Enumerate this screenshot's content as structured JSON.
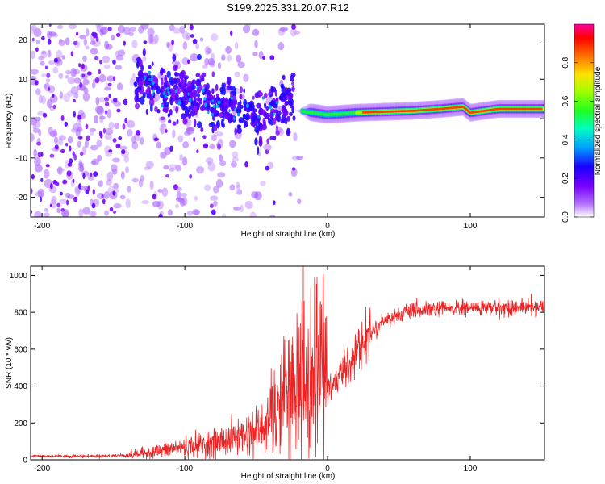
{
  "title": "S199.2025.331.20.07.R12",
  "chart_data": [
    {
      "type": "heatmap",
      "title": "S199.2025.331.20.07.R12",
      "xlabel": "Height of straight line (km)",
      "ylabel": "Frequency (Hz)",
      "xlim": [
        -208,
        152
      ],
      "ylim": [
        -25,
        24
      ],
      "xticks": [
        -200,
        -100,
        0,
        100
      ],
      "yticks": [
        -20,
        -10,
        0,
        10,
        20
      ],
      "colorbar": {
        "label": "Normalized spectral amplitude",
        "range": [
          0.0,
          1.0
        ],
        "ticks": [
          0.0,
          0.2,
          0.4,
          0.6,
          0.8
        ],
        "colormap": [
          "#ffffff",
          "#8000ff",
          "#0000ff",
          "#00c8ff",
          "#00ff80",
          "#80ff00",
          "#ffff00",
          "#ff8000",
          "#ff0000",
          "#ff00b4"
        ]
      },
      "carrier_ridge": {
        "description_points": [
          {
            "x": -20,
            "f": 2.0
          },
          {
            "x": 0,
            "f": 1.0
          },
          {
            "x": 20,
            "f": 1.5
          },
          {
            "x": 60,
            "f": 2.0
          },
          {
            "x": 80,
            "f": 2.5
          },
          {
            "x": 95,
            "f": 3.0
          },
          {
            "x": 100,
            "f": 1.5
          },
          {
            "x": 120,
            "f": 2.5
          },
          {
            "x": 150,
            "f": 2.5
          }
        ]
      },
      "scatter_trend": [
        {
          "x": -130,
          "f": 9
        },
        {
          "x": -100,
          "f": 6
        },
        {
          "x": -70,
          "f": 3
        },
        {
          "x": -45,
          "f": 0
        },
        {
          "x": -25,
          "f": 4
        }
      ]
    },
    {
      "type": "line",
      "xlabel": "Height of straight line (km)",
      "ylabel": "SNR (10 * v/v)",
      "xlim": [
        -208,
        152
      ],
      "ylim": [
        0,
        1050
      ],
      "xticks": [
        -200,
        -100,
        0,
        100
      ],
      "yticks": [
        0,
        200,
        400,
        600,
        800,
        1000
      ],
      "series": [
        {
          "name": "SNR",
          "color": "#ee2222",
          "trend_points": [
            {
              "x": -208,
              "y": 20
            },
            {
              "x": -160,
              "y": 20
            },
            {
              "x": -140,
              "y": 25
            },
            {
              "x": -120,
              "y": 45
            },
            {
              "x": -100,
              "y": 70
            },
            {
              "x": -80,
              "y": 90
            },
            {
              "x": -60,
              "y": 130
            },
            {
              "x": -45,
              "y": 170
            },
            {
              "x": -30,
              "y": 230
            },
            {
              "x": -20,
              "y": 280
            },
            {
              "x": -10,
              "y": 330
            },
            {
              "x": 0,
              "y": 380
            },
            {
              "x": 10,
              "y": 470
            },
            {
              "x": 20,
              "y": 580
            },
            {
              "x": 30,
              "y": 690
            },
            {
              "x": 40,
              "y": 760
            },
            {
              "x": 55,
              "y": 800
            },
            {
              "x": 80,
              "y": 820
            },
            {
              "x": 120,
              "y": 825
            },
            {
              "x": 152,
              "y": 830
            }
          ],
          "spikes": [
            {
              "x": -17,
              "y": 1050
            },
            {
              "x": -18,
              "y": 860
            },
            {
              "x": -20,
              "y": 720
            },
            {
              "x": 100,
              "y": 820
            }
          ]
        }
      ]
    }
  ]
}
